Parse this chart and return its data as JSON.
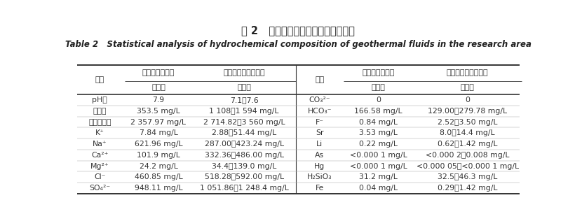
{
  "title_cn": "表 2   研究区地热流体水化学成分统计",
  "title_en": "Table 2   Statistical analysis of hydrochemical composition of geothermal fluids in the research area",
  "header_col1": "项目",
  "header_col2": "新生界砂岩热储",
  "header_col3": "古生界碳酸盐岩热储",
  "header_sub": "范围值",
  "left_rows": [
    [
      "pH值",
      "7.9",
      "7.1～7.6"
    ],
    [
      "总硬度",
      "353.5 mg/L",
      "1 108～1 594 mg/L"
    ],
    [
      "溶解总固体",
      "2 357.97 mg/L",
      "2 714.82～3 560 mg/L"
    ],
    [
      "K⁺",
      "7.84 mg/L",
      "2.88～51.44 mg/L"
    ],
    [
      "Na⁺",
      "621.96 mg/L",
      "287.00～423.24 mg/L"
    ],
    [
      "Ca²⁺",
      "101.9 mg/L",
      "332.36～486.00 mg/L"
    ],
    [
      "Mg²⁺",
      "24.2 mg/L",
      "34.4～139.0 mg/L"
    ],
    [
      "Cl⁻",
      "460.85 mg/L",
      "518.28～592.00 mg/L"
    ],
    [
      "SO₄²⁻",
      "948.11 mg/L",
      "1 051.86～1 248.4 mg/L"
    ]
  ],
  "right_rows": [
    [
      "CO₃²⁻",
      "0",
      "0"
    ],
    [
      "HCO₃⁻",
      "166.58 mg/L",
      "129.00～279.78 mg/L"
    ],
    [
      "F⁻",
      "0.84 mg/L",
      "2.52～3.50 mg/L"
    ],
    [
      "Sr",
      "3.53 mg/L",
      "8.0～14.4 mg/L"
    ],
    [
      "Li",
      "0.22 mg/L",
      "0.62～1.42 mg/L"
    ],
    [
      "As",
      "<0.000 1 mg/L",
      "<0.000 2～0.008 mg/L"
    ],
    [
      "Hg",
      "<0.000 1 mg/L",
      "<0.000 05～<0.000 1 mg/L"
    ],
    [
      "H₂SiO₃",
      "31.2 mg/L",
      "32.5～46.3 mg/L"
    ],
    [
      "Fe",
      "0.04 mg/L",
      "0.29～1.42 mg/L"
    ]
  ],
  "bg_color": "#ffffff",
  "text_color": "#333333",
  "title_cn_color": "#222222",
  "header_text_color": "#333333",
  "font_size_title_cn": 10.5,
  "font_size_title_en": 8.5,
  "font_size_header": 8.0,
  "font_size_table": 7.8
}
